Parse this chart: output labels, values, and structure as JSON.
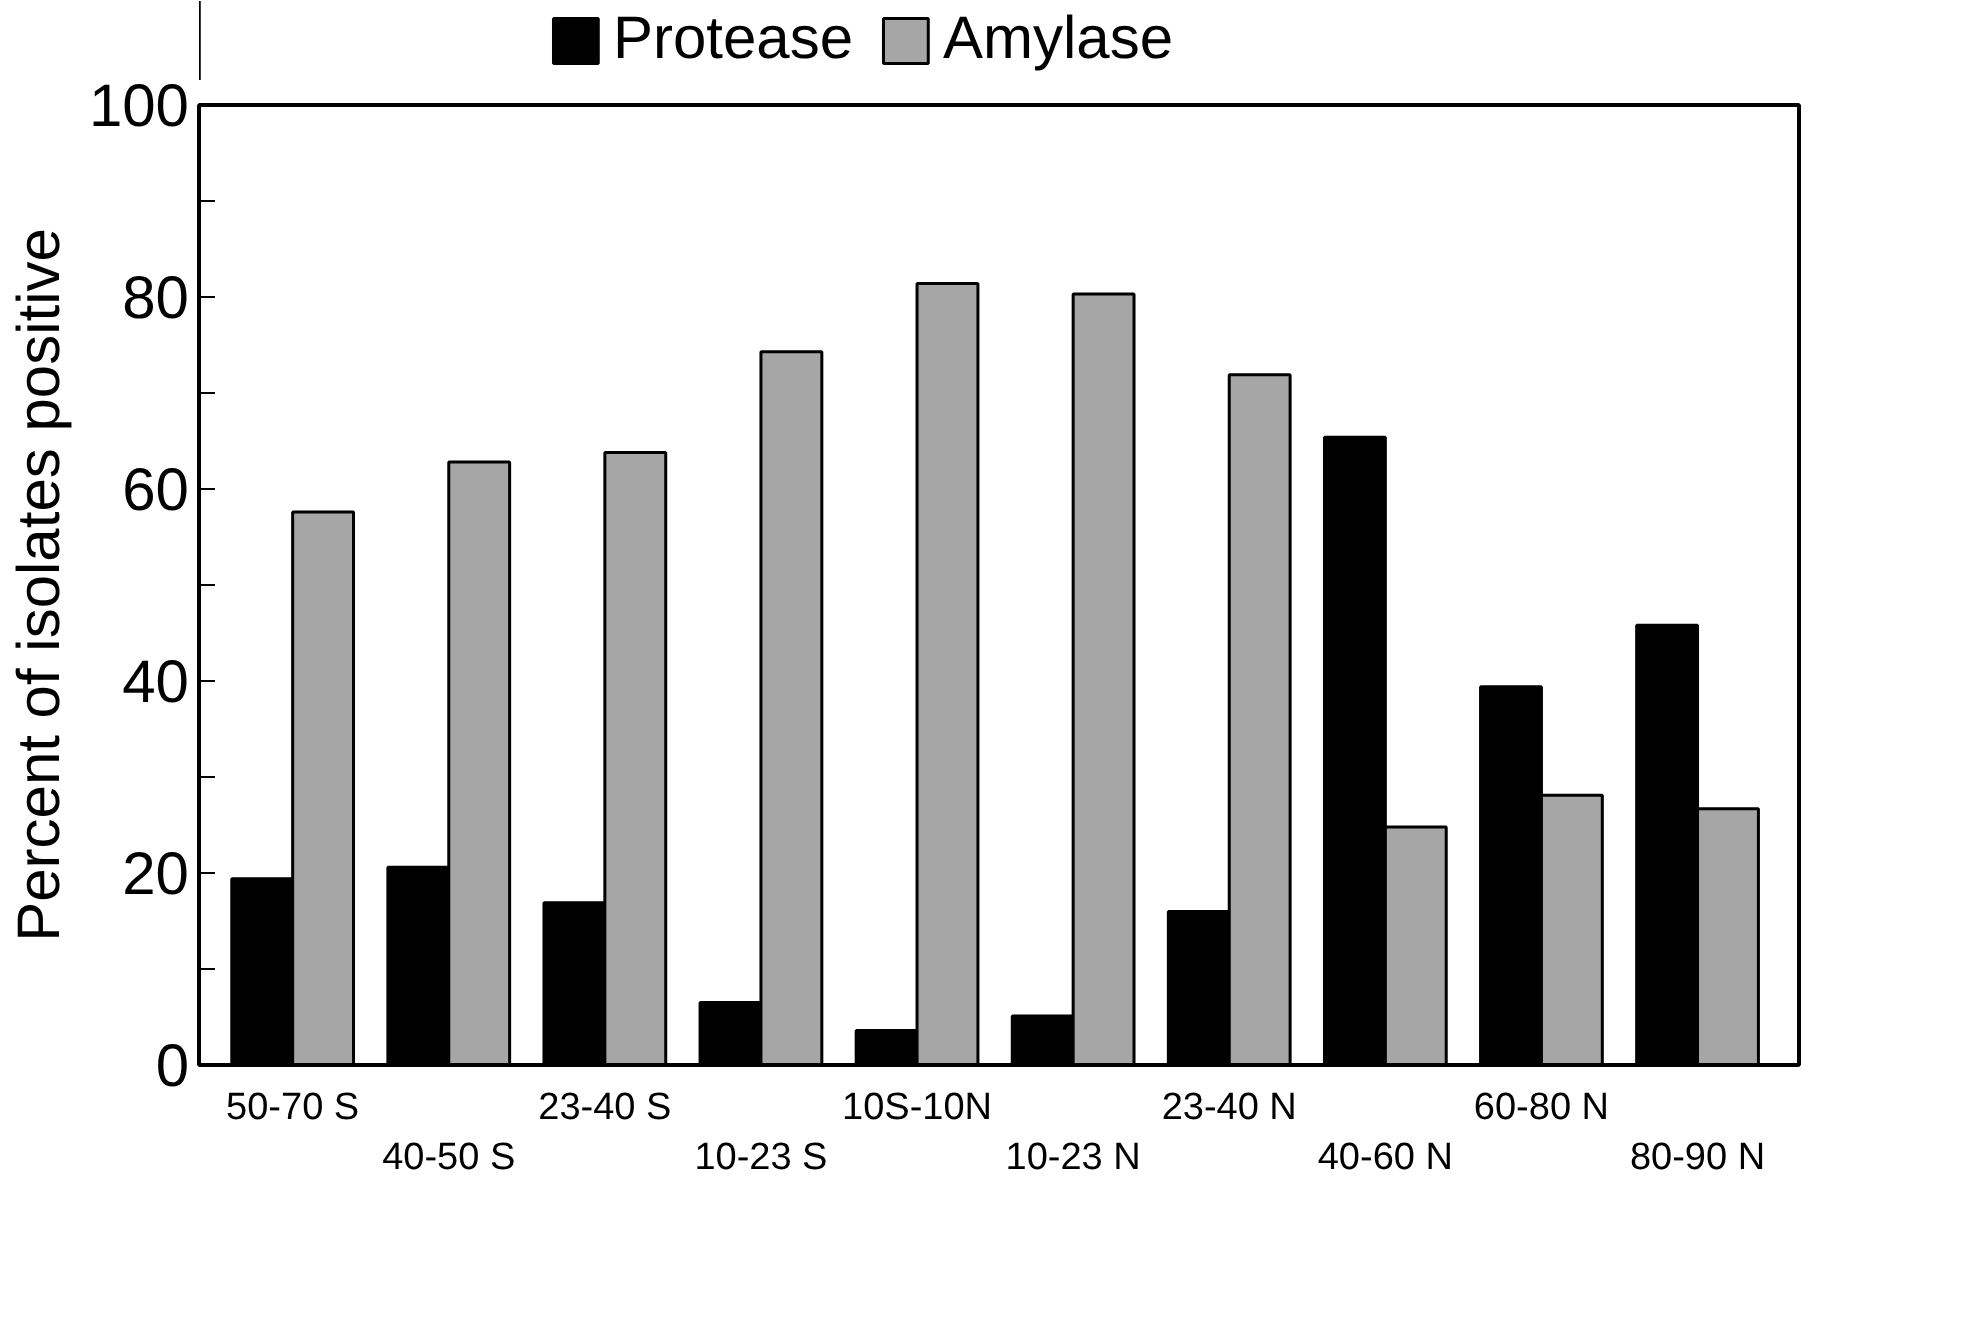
{
  "chart_data": {
    "type": "bar",
    "ylabel": "Percent of isolates positive",
    "categories": [
      "50-70 S",
      "40-50 S",
      "23-40 S",
      "10-23 S",
      "10S-10N",
      "10-23 N",
      "23-40 N",
      "40-60 N",
      "60-80 N",
      "80-90 N"
    ],
    "series": [
      {
        "name": "Protease",
        "color": "#000000",
        "values": [
          19.4,
          20.6,
          16.9,
          6.5,
          3.6,
          5.1,
          16.0,
          65.4,
          39.4,
          45.8
        ]
      },
      {
        "name": "Amylase",
        "color": "#a6a6a6",
        "values": [
          57.6,
          62.8,
          63.8,
          74.3,
          81.4,
          80.3,
          71.9,
          24.8,
          28.1,
          26.7
        ]
      }
    ],
    "ylim": [
      0,
      100
    ],
    "yticks": [
      0,
      {
        "value": 10,
        "label": null
      },
      20,
      {
        "value": 30,
        "label": null
      },
      40,
      {
        "value": 50,
        "label": null
      },
      60,
      {
        "value": 70,
        "label": null
      },
      80,
      {
        "value": 90,
        "label": null
      },
      100
    ],
    "grid": false,
    "legend": "top"
  }
}
